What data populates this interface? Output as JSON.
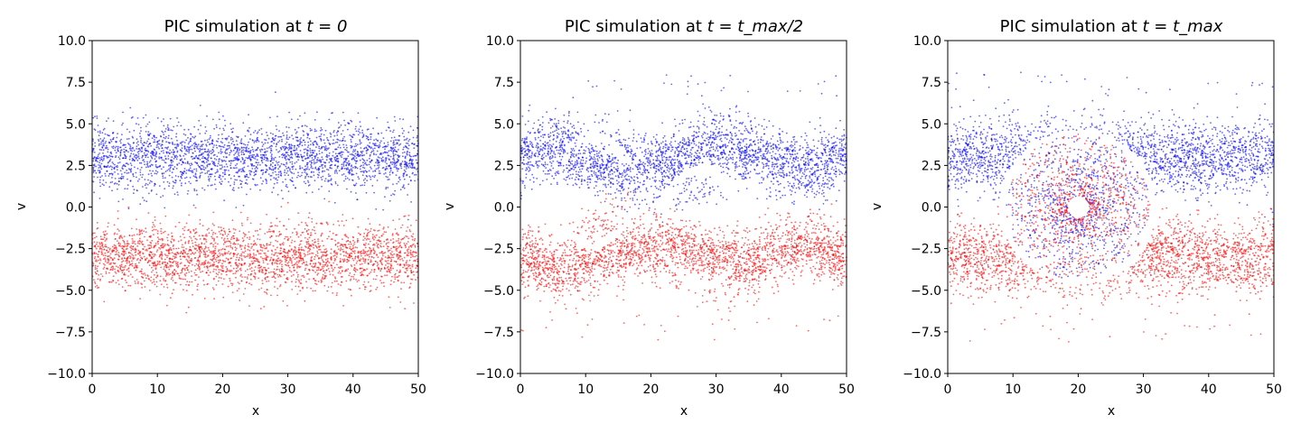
{
  "chart_data": [
    {
      "type": "scatter",
      "title": {
        "prefix": "PIC simulation at ",
        "formula": "t = 0"
      },
      "xlabel": "x",
      "ylabel": "v",
      "xlim": [
        0,
        50
      ],
      "ylim": [
        -10,
        10
      ],
      "xticks": [
        "0",
        "10",
        "20",
        "30",
        "40",
        "50"
      ],
      "yticks": [
        "−10.0",
        "−7.5",
        "−5.0",
        "−2.5",
        "0.0",
        "2.5",
        "5.0",
        "7.5",
        "10.0"
      ],
      "grid": false,
      "series": [
        {
          "color": "#0000ff",
          "shape": "band",
          "center": 3.0,
          "spread": 1.0
        },
        {
          "color": "#ff0000",
          "shape": "band",
          "center": -3.0,
          "spread": 1.0
        }
      ]
    },
    {
      "type": "scatter",
      "title": {
        "prefix": "PIC simulation at ",
        "formula": "t = t_max/2"
      },
      "xlabel": "x",
      "ylabel": "v",
      "xlim": [
        0,
        50
      ],
      "ylim": [
        -10,
        10
      ],
      "xticks": [
        "0",
        "10",
        "20",
        "30",
        "40",
        "50"
      ],
      "yticks": [
        "−10.0",
        "−7.5",
        "−5.0",
        "−2.5",
        "0.0",
        "2.5",
        "5.0",
        "7.5",
        "10.0"
      ],
      "grid": false,
      "series": [
        {
          "color": "#0000ff",
          "shape": "two-vortices",
          "vortex_x": [
            12.5,
            27.0
          ],
          "vortex_v": [
            1.0,
            -1.2
          ]
        },
        {
          "color": "#ff0000",
          "shape": "two-vortices",
          "vortex_x": [
            12.5,
            27.0
          ],
          "vortex_v": [
            1.0,
            -1.2
          ]
        }
      ]
    },
    {
      "type": "scatter",
      "title": {
        "prefix": "PIC simulation at ",
        "formula": "t = t_max"
      },
      "xlabel": "x",
      "ylabel": "v",
      "xlim": [
        0,
        50
      ],
      "ylim": [
        -10,
        10
      ],
      "xticks": [
        "0",
        "10",
        "20",
        "30",
        "40",
        "50"
      ],
      "yticks": [
        "−10.0",
        "−7.5",
        "−5.0",
        "−2.5",
        "0.0",
        "2.5",
        "5.0",
        "7.5",
        "10.0"
      ],
      "grid": false,
      "series": [
        {
          "color": "#0000ff",
          "shape": "merged-vortex",
          "vortex_x": [
            20.0
          ],
          "vortex_v": [
            0.0
          ]
        },
        {
          "color": "#ff0000",
          "shape": "merged-vortex",
          "vortex_x": [
            20.0
          ],
          "vortex_v": [
            0.0
          ]
        }
      ]
    }
  ]
}
